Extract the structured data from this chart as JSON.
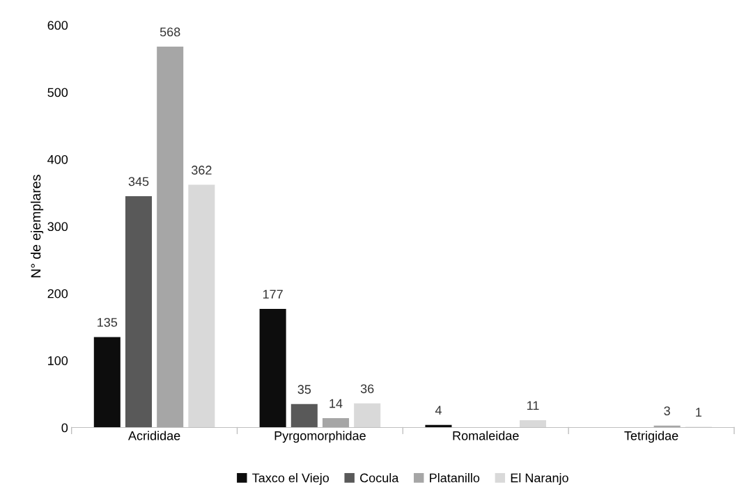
{
  "chart_data": {
    "type": "bar",
    "ylabel": "N° de ejemplares",
    "categories": [
      "Acrididae",
      "Pyrgomorphidae",
      "Romaleidae",
      "Tetrigidae"
    ],
    "series": [
      {
        "name": "Taxco el Viejo",
        "color": "#0d0d0d",
        "values": [
          135,
          177,
          4,
          null
        ],
        "value_labels": [
          "135",
          "177",
          "4",
          null
        ]
      },
      {
        "name": "Cocula",
        "color": "#595959",
        "values": [
          345,
          35,
          null,
          null
        ],
        "value_labels": [
          "345",
          "35",
          null,
          null
        ]
      },
      {
        "name": "Platanillo",
        "color": "#a6a6a6",
        "values": [
          568,
          14,
          null,
          3
        ],
        "value_labels": [
          "568",
          "14",
          null,
          "3"
        ]
      },
      {
        "name": "El Naranjo",
        "color": "#d9d9d9",
        "values": [
          362,
          36,
          11,
          1
        ],
        "value_labels": [
          "362",
          "36",
          "11",
          "1"
        ]
      }
    ],
    "ylim": [
      0,
      600
    ],
    "yticks": [
      0,
      100,
      200,
      300,
      400,
      500,
      600
    ],
    "grid": false,
    "legend": "bottom"
  }
}
